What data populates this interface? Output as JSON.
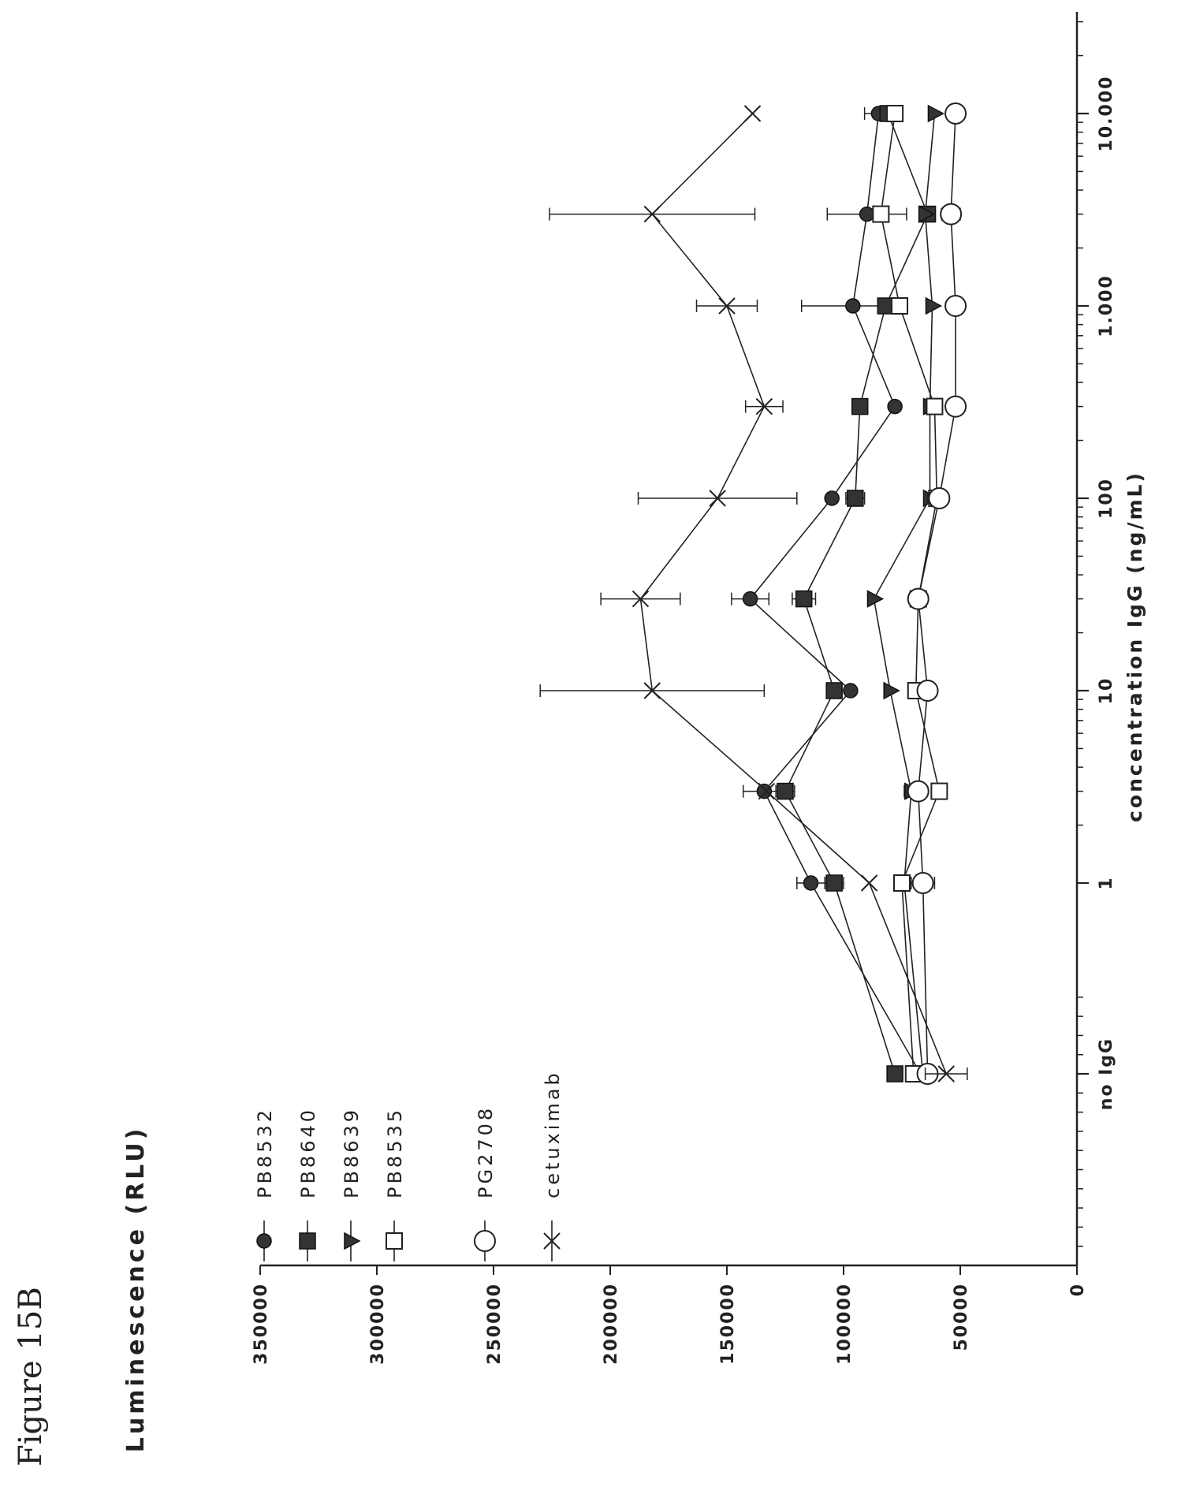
{
  "figure_label": "Figure 15B",
  "chart_data": {
    "type": "line",
    "title": "",
    "xlabel": "concentration IgG (ng/mL)",
    "ylabel": "Luminescence (RLU)",
    "x_scale": "log",
    "x_tick_labels": [
      "no IgG",
      "1",
      "10",
      "100",
      "1.000",
      "10.000"
    ],
    "y_ticks": [
      0,
      50000,
      100000,
      150000,
      200000,
      250000,
      300000,
      350000
    ],
    "ylim": [
      0,
      350000
    ],
    "legend_position": "left of plot area",
    "x": [
      "no IgG",
      1,
      3,
      10,
      30,
      100,
      300,
      1000,
      3000,
      10000
    ],
    "series": [
      {
        "name": "PB8532",
        "marker": "circle-filled",
        "values": [
          67000,
          114000,
          134000,
          97000,
          140000,
          105000,
          78000,
          96000,
          90000,
          85000
        ],
        "errors": [
          0,
          6000,
          9000,
          0,
          8000,
          0,
          0,
          22000,
          17000,
          6000
        ]
      },
      {
        "name": "PB8640",
        "marker": "square-filled",
        "values": [
          78000,
          104000,
          125000,
          104000,
          117000,
          95000,
          93000,
          82000,
          64000,
          81000
        ],
        "errors": [
          0,
          4000,
          4000,
          0,
          5000,
          4000,
          0,
          0,
          0,
          0
        ]
      },
      {
        "name": "PB8639",
        "marker": "triangle-down-filled",
        "values": [
          66000,
          74000,
          71000,
          80000,
          87000,
          63000,
          63000,
          62000,
          65000,
          61000
        ],
        "errors": [
          0,
          0,
          3000,
          0,
          0,
          0,
          0,
          0,
          0,
          0
        ]
      },
      {
        "name": "PB8535",
        "marker": "square-open",
        "values": [
          70000,
          75000,
          59000,
          69000,
          68000,
          60000,
          61000,
          76000,
          84000,
          78000
        ],
        "errors": [
          0,
          0,
          2000,
          0,
          0,
          4000,
          0,
          0,
          0,
          0
        ]
      },
      {
        "name": "PG2708",
        "marker": "circle-open",
        "values": [
          64000,
          66000,
          68000,
          64000,
          68000,
          59000,
          52000,
          52000,
          54000,
          52000
        ],
        "errors": [
          0,
          5000,
          0,
          0,
          0,
          0,
          0,
          0,
          4000,
          0
        ]
      },
      {
        "name": "cetuximab",
        "marker": "x",
        "values": [
          56000,
          89000,
          133000,
          182000,
          187000,
          154000,
          134000,
          150000,
          182000,
          139000
        ],
        "errors": [
          9000,
          0,
          0,
          48000,
          17000,
          34000,
          8000,
          13000,
          44000,
          0
        ]
      }
    ]
  }
}
